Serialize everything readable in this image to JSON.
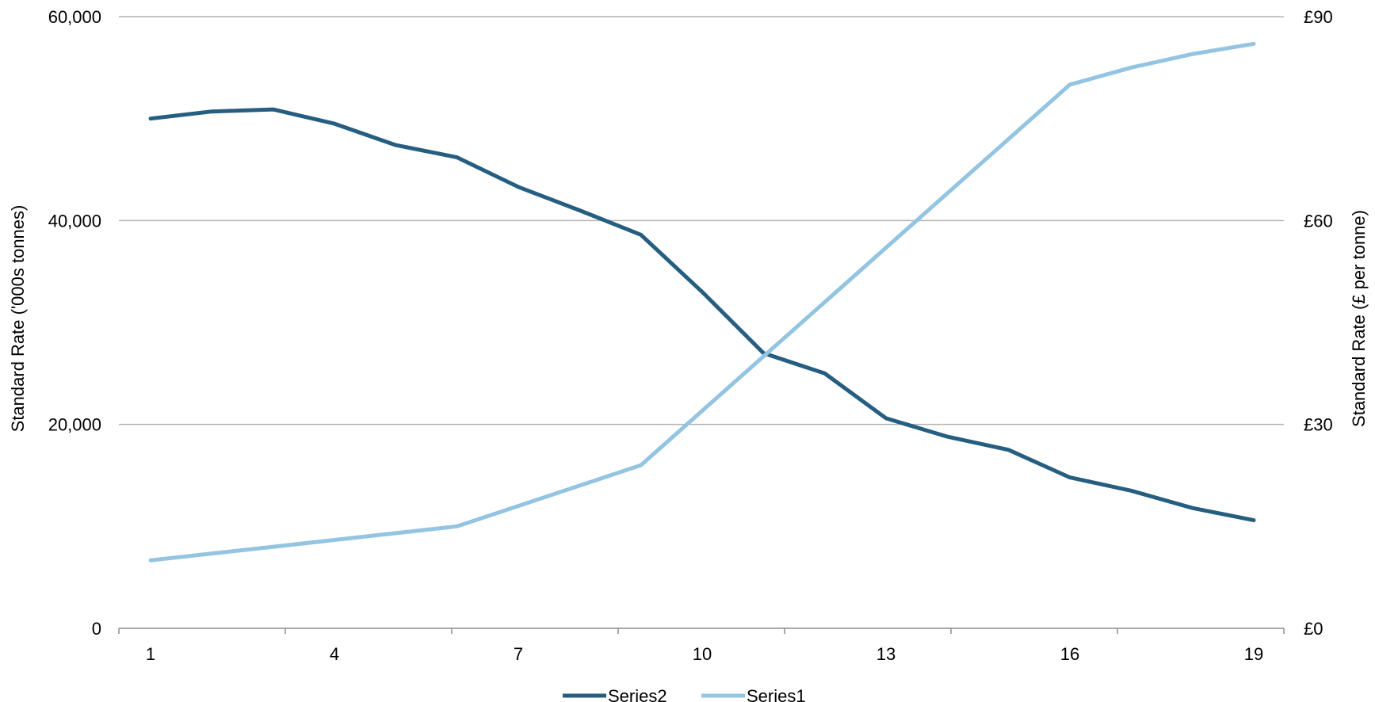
{
  "chart_data": {
    "type": "line",
    "title": "",
    "x": [
      1,
      2,
      3,
      4,
      5,
      6,
      7,
      8,
      9,
      10,
      11,
      12,
      13,
      14,
      15,
      16,
      17,
      18,
      19
    ],
    "x_ticks": [
      "1",
      "4",
      "7",
      "10",
      "13",
      "16",
      "19"
    ],
    "y_left": {
      "label": "Standard Rate ('000s tonnes)",
      "range": [
        0,
        60000
      ],
      "ticks": [
        0,
        20000,
        40000,
        60000
      ],
      "tick_labels": [
        "0",
        "20,000",
        "40,000",
        "60,000"
      ]
    },
    "y_right": {
      "label": "Standard Rate (£ per tonne)",
      "range": [
        0,
        90
      ],
      "ticks": [
        0,
        30,
        60,
        90
      ],
      "tick_labels": [
        "£0",
        "£30",
        "£60",
        "£90"
      ]
    },
    "series": [
      {
        "name": "Series2",
        "axis": "left",
        "color": "#255e80",
        "values": [
          50000,
          50700,
          50900,
          49500,
          47400,
          46200,
          43300,
          41000,
          38600,
          33000,
          27000,
          25000,
          20600,
          18800,
          17500,
          14800,
          13500,
          11800,
          10600
        ]
      },
      {
        "name": "Series1",
        "axis": "right",
        "color": "#93c4e1",
        "values": [
          10,
          11,
          12,
          13,
          14,
          15,
          18,
          21,
          24,
          32,
          40,
          48,
          56,
          64,
          72,
          80,
          82.5,
          84.5,
          86
        ]
      }
    ],
    "grid": "horizontal",
    "legend": "bottom"
  }
}
